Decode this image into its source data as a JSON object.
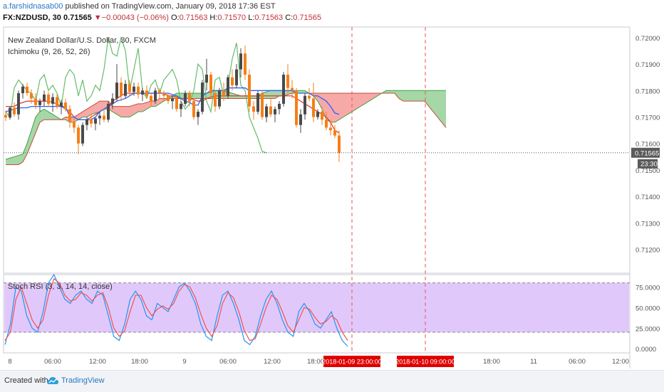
{
  "header": {
    "author": "a.farshidnasab00",
    "published_text": "published on TradingView.com, January 09, 2018 17:36 EST",
    "symbol": "FX:NZDUSD, 30",
    "last": "0.71565",
    "change": "▼−0.00043 (−0.06%)",
    "o_label": "O:",
    "o_val": "0.71563",
    "h_label": "H:",
    "h_val": "0.71570",
    "l_label": "L:",
    "l_val": "0.71563",
    "c_label": "C:",
    "c_val": "0.71565"
  },
  "footer": {
    "created_with": "Created with",
    "brand": "TradingView"
  },
  "colors": {
    "up": "#4a4a4a",
    "down": "#f57f17",
    "kumo_bull": "#4caf50",
    "kumo_bear": "#ef5350",
    "conversion": "#2962ff",
    "base": "#e53935",
    "lagging": "#66bb6a",
    "k": "#2196f3",
    "d": "#ef5350",
    "rsi_band": "#e1c8fb",
    "marker": "#ef5350",
    "label_bg": "#e00000"
  },
  "chart_data": [
    {
      "type": "line",
      "title": "New Zealand Dollar/U.S. Dollar, 30, FXCM",
      "indicator": "Ichimoku (9, 26, 52, 26)",
      "ylim": [
        0.7111,
        0.7204
      ],
      "y_ticks": [
        "0.72000",
        "0.71900",
        "0.71800",
        "0.71700",
        "0.71600",
        "0.71500",
        "0.71400",
        "0.71300",
        "0.71200"
      ],
      "y_tick_values": [
        0.72,
        0.719,
        0.718,
        0.717,
        0.716,
        0.715,
        0.714,
        0.713,
        0.712
      ],
      "last_price_label": "0.71565",
      "last_price": 0.71565,
      "countdown": "23:30",
      "x_ticks": [
        "8",
        "06:00",
        "12:00",
        "18:00",
        "9",
        "06:00",
        "12:00",
        "18:00",
        "",
        "",
        "18:00",
        "11",
        "06:00",
        "12:00"
      ],
      "time_markers": [
        "2018-01-09 23:00:00",
        "2018-01-10 09:00:00"
      ],
      "candles_ohlc": [
        [
          0.71708,
          0.71725,
          0.71685,
          0.71698
        ],
        [
          0.71698,
          0.7174,
          0.7169,
          0.71735
        ],
        [
          0.71735,
          0.71755,
          0.717,
          0.7171
        ],
        [
          0.7171,
          0.718,
          0.7169,
          0.7179
        ],
        [
          0.7179,
          0.71825,
          0.7177,
          0.71815
        ],
        [
          0.71815,
          0.7183,
          0.7178,
          0.7179
        ],
        [
          0.7179,
          0.71805,
          0.7175,
          0.7177
        ],
        [
          0.7177,
          0.7179,
          0.7173,
          0.71745
        ],
        [
          0.71745,
          0.7177,
          0.7172,
          0.7176
        ],
        [
          0.7176,
          0.718,
          0.7174,
          0.71785
        ],
        [
          0.71785,
          0.71795,
          0.7174,
          0.7175
        ],
        [
          0.7175,
          0.7179,
          0.7172,
          0.71775
        ],
        [
          0.71775,
          0.71785,
          0.7173,
          0.7174
        ],
        [
          0.7174,
          0.71765,
          0.7171,
          0.71755
        ],
        [
          0.71755,
          0.7177,
          0.7172,
          0.7173
        ],
        [
          0.7173,
          0.71745,
          0.7166,
          0.7168
        ],
        [
          0.7168,
          0.717,
          0.7164,
          0.7166
        ],
        [
          0.7166,
          0.7167,
          0.7156,
          0.716
        ],
        [
          0.716,
          0.7168,
          0.7159,
          0.7167
        ],
        [
          0.7167,
          0.717,
          0.7165,
          0.7169
        ],
        [
          0.7169,
          0.7171,
          0.7166,
          0.71675
        ],
        [
          0.71675,
          0.717,
          0.7165,
          0.71695
        ],
        [
          0.71695,
          0.7172,
          0.7167,
          0.71705
        ],
        [
          0.71705,
          0.7173,
          0.7168,
          0.7169
        ],
        [
          0.7169,
          0.7176,
          0.7168,
          0.7175
        ],
        [
          0.7175,
          0.7179,
          0.7173,
          0.7177
        ],
        [
          0.7177,
          0.719,
          0.7176,
          0.7183
        ],
        [
          0.7183,
          0.7185,
          0.7176,
          0.7178
        ],
        [
          0.7178,
          0.7184,
          0.7177,
          0.71825
        ],
        [
          0.71825,
          0.7184,
          0.7178,
          0.71795
        ],
        [
          0.71795,
          0.7183,
          0.7178,
          0.71815
        ],
        [
          0.71815,
          0.7183,
          0.7177,
          0.71785
        ],
        [
          0.71785,
          0.7181,
          0.7176,
          0.718
        ],
        [
          0.718,
          0.7182,
          0.7177,
          0.7178
        ],
        [
          0.7178,
          0.7179,
          0.7174,
          0.7176
        ],
        [
          0.7176,
          0.7181,
          0.7175,
          0.718
        ],
        [
          0.718,
          0.7181,
          0.7177,
          0.7179
        ],
        [
          0.7179,
          0.718,
          0.7176,
          0.7178
        ],
        [
          0.7178,
          0.7179,
          0.7175,
          0.7176
        ],
        [
          0.7176,
          0.7178,
          0.7173,
          0.7177
        ],
        [
          0.7177,
          0.7178,
          0.7172,
          0.7173
        ],
        [
          0.7173,
          0.7176,
          0.717,
          0.7175
        ],
        [
          0.7175,
          0.718,
          0.7174,
          0.7179
        ],
        [
          0.7179,
          0.718,
          0.7174,
          0.7176
        ],
        [
          0.7176,
          0.7177,
          0.7169,
          0.717
        ],
        [
          0.717,
          0.7173,
          0.7167,
          0.7172
        ],
        [
          0.7172,
          0.7184,
          0.7171,
          0.7183
        ],
        [
          0.7183,
          0.7192,
          0.718,
          0.7186
        ],
        [
          0.7186,
          0.7187,
          0.7177,
          0.7179
        ],
        [
          0.7179,
          0.718,
          0.7172,
          0.7174
        ],
        [
          0.7174,
          0.7181,
          0.7173,
          0.718
        ],
        [
          0.718,
          0.7183,
          0.7176,
          0.7178
        ],
        [
          0.7178,
          0.7186,
          0.7177,
          0.7185
        ],
        [
          0.7185,
          0.7188,
          0.718,
          0.7182
        ],
        [
          0.7182,
          0.719,
          0.7181,
          0.7188
        ],
        [
          0.7188,
          0.7196,
          0.7185,
          0.7194
        ],
        [
          0.7194,
          0.7197,
          0.7184,
          0.7186
        ],
        [
          0.7186,
          0.7188,
          0.7172,
          0.7174
        ],
        [
          0.7174,
          0.7176,
          0.7169,
          0.7172
        ],
        [
          0.7172,
          0.718,
          0.7171,
          0.7179
        ],
        [
          0.7179,
          0.718,
          0.7169,
          0.717
        ],
        [
          0.717,
          0.7175,
          0.7168,
          0.7174
        ],
        [
          0.7174,
          0.7177,
          0.717,
          0.7171
        ],
        [
          0.7171,
          0.7174,
          0.7168,
          0.7173
        ],
        [
          0.7173,
          0.7176,
          0.7171,
          0.7175
        ],
        [
          0.7175,
          0.7187,
          0.7174,
          0.7186
        ],
        [
          0.7186,
          0.719,
          0.7179,
          0.7181
        ],
        [
          0.7181,
          0.7184,
          0.7177,
          0.718
        ],
        [
          0.718,
          0.7181,
          0.7166,
          0.7167
        ],
        [
          0.7167,
          0.7173,
          0.7164,
          0.7171
        ],
        [
          0.7171,
          0.7179,
          0.7169,
          0.7178
        ],
        [
          0.7178,
          0.7181,
          0.7176,
          0.7177
        ],
        [
          0.7177,
          0.7183,
          0.7168,
          0.717
        ],
        [
          0.717,
          0.7173,
          0.7169,
          0.7172
        ],
        [
          0.7172,
          0.7174,
          0.7167,
          0.7169
        ],
        [
          0.7169,
          0.7172,
          0.7165,
          0.7166
        ],
        [
          0.7166,
          0.7169,
          0.7163,
          0.7165
        ],
        [
          0.7165,
          0.7167,
          0.7162,
          0.7163
        ],
        [
          0.7163,
          0.7165,
          0.7153,
          0.71565
        ]
      ],
      "conversion_line": [
        0.7172,
        0.71725,
        0.7173,
        0.71735,
        0.71735,
        0.71735,
        0.7174,
        0.7174,
        0.7174,
        0.7174,
        0.7174,
        0.7174,
        0.7174,
        0.7174,
        0.7174,
        0.717,
        0.717,
        0.7169,
        0.7169,
        0.7169,
        0.7169,
        0.717,
        0.7172,
        0.7173,
        0.7174,
        0.7175,
        0.7176,
        0.71765,
        0.7177,
        0.7178,
        0.7179,
        0.7179,
        0.7179,
        0.7179,
        0.7179,
        0.7179,
        0.7179,
        0.7179,
        0.7179,
        0.71785,
        0.7178,
        0.7177,
        0.7176,
        0.71755,
        0.71745,
        0.71745,
        0.7178,
        0.7179,
        0.718,
        0.718,
        0.718,
        0.718,
        0.7181,
        0.7181,
        0.7181,
        0.7181,
        0.7181,
        0.718,
        0.718,
        0.718,
        0.718,
        0.718,
        0.718,
        0.718,
        0.718,
        0.718,
        0.718,
        0.718,
        0.7179,
        0.7179,
        0.7179,
        0.7179,
        0.7178,
        0.7178,
        0.7177,
        0.7176,
        0.7174,
        0.71715,
        0.7171
      ],
      "base_line": [
        0.7174,
        0.7174,
        0.7174,
        0.7175,
        0.71755,
        0.7176,
        0.7176,
        0.7176,
        0.7176,
        0.7176,
        0.7176,
        0.71755,
        0.7175,
        0.7174,
        0.7173,
        0.7172,
        0.717,
        0.7169,
        0.7169,
        0.7169,
        0.717,
        0.7171,
        0.7172,
        0.7173,
        0.7174,
        0.7176,
        0.7177,
        0.7178,
        0.7179,
        0.7179,
        0.7179,
        0.7179,
        0.7179,
        0.7179,
        0.7179,
        0.7179,
        0.7179,
        0.7179,
        0.7178,
        0.7178,
        0.71775,
        0.7177,
        0.7177,
        0.7177,
        0.71765,
        0.7176,
        0.7176,
        0.7177,
        0.71775,
        0.7178,
        0.7178,
        0.7178,
        0.7178,
        0.7178,
        0.7178,
        0.7178,
        0.7178,
        0.7178,
        0.7178,
        0.7178,
        0.7178,
        0.7178,
        0.7178,
        0.7178,
        0.7178,
        0.7178,
        0.7178,
        0.7178,
        0.7177,
        0.7176,
        0.7175,
        0.7174,
        0.7173,
        0.7172,
        0.7171,
        0.717,
        0.7168,
        0.7165,
        0.7164
      ],
      "lagging_span": [
        0.7172,
        0.717,
        0.7181,
        0.7184,
        0.7182,
        0.718,
        0.7179,
        0.7176,
        0.7184,
        0.7186,
        0.718,
        0.7182,
        0.7179,
        0.7174,
        0.7185,
        0.7188,
        0.7186,
        0.7178,
        0.7184,
        0.7176,
        0.7178,
        0.7182,
        0.718,
        0.7188,
        0.72,
        0.7194,
        0.7193,
        0.72,
        0.7195,
        0.718,
        0.7188,
        0.7196,
        0.718,
        0.7177,
        0.7182,
        0.7184,
        0.7179,
        0.7184,
        0.7186,
        0.7188,
        0.7184,
        0.7176,
        0.7173,
        0.7175,
        0.718,
        0.719,
        0.7188,
        0.7176,
        0.7172,
        0.7184,
        0.7185,
        0.7178,
        0.7182,
        0.7192,
        0.7198,
        0.7182,
        0.718,
        0.717,
        0.7166,
        0.7162,
        0.7157,
        0.71565
      ],
      "span_a": [
        0.7154,
        0.71545,
        0.7155,
        0.71555,
        0.7156,
        0.716,
        0.7165,
        0.717,
        0.7172,
        0.7173,
        0.7172,
        0.7171,
        0.717,
        0.7169,
        0.7169,
        0.7168,
        0.7168,
        0.7169,
        0.717,
        0.717,
        0.7171,
        0.71715,
        0.7172,
        0.7173,
        0.7173,
        0.7172,
        0.7171,
        0.717,
        0.717,
        0.717,
        0.7171,
        0.7172,
        0.7172,
        0.7173,
        0.7174,
        0.7174,
        0.7175,
        0.7176,
        0.7177,
        0.7178,
        0.7179,
        0.7179,
        0.7179,
        0.7179,
        0.7179,
        0.7179,
        0.7179,
        0.7179,
        0.71795,
        0.718,
        0.718,
        0.718,
        0.71795,
        0.7179,
        0.71785,
        0.7178,
        0.7178,
        0.7178,
        0.7178,
        0.7178,
        0.7179,
        0.71795,
        0.718,
        0.718,
        0.718,
        0.718,
        0.718,
        0.718,
        0.718,
        0.718,
        0.718,
        0.7179,
        0.7178,
        0.7176,
        0.7173,
        0.7169,
        0.7168,
        0.7168,
        0.7169,
        0.717,
        0.7171,
        0.7172,
        0.7173,
        0.7174,
        0.7175,
        0.7176,
        0.7177,
        0.7178,
        0.7179,
        0.718,
        0.718,
        0.718,
        0.718,
        0.718,
        0.718,
        0.718,
        0.718,
        0.718,
        0.718,
        0.718,
        0.718,
        0.718,
        0.718,
        0.718
      ],
      "span_b": [
        0.7152,
        0.7152,
        0.7152,
        0.7152,
        0.7153,
        0.7156,
        0.716,
        0.7164,
        0.7168,
        0.7169,
        0.7169,
        0.7169,
        0.7169,
        0.7169,
        0.717,
        0.717,
        0.717,
        0.7171,
        0.7172,
        0.7173,
        0.7174,
        0.7175,
        0.7176,
        0.7176,
        0.7176,
        0.7174,
        0.7174,
        0.7174,
        0.7174,
        0.7174,
        0.71745,
        0.7175,
        0.7175,
        0.71755,
        0.7176,
        0.7176,
        0.7177,
        0.7177,
        0.7177,
        0.7177,
        0.7177,
        0.7177,
        0.7177,
        0.7177,
        0.7177,
        0.7177,
        0.7177,
        0.7177,
        0.7177,
        0.7177,
        0.7177,
        0.7177,
        0.7177,
        0.7177,
        0.7177,
        0.7177,
        0.7177,
        0.7177,
        0.7177,
        0.7177,
        0.7177,
        0.7177,
        0.7177,
        0.7177,
        0.7178,
        0.7178,
        0.71785,
        0.7179,
        0.7179,
        0.7179,
        0.7179,
        0.7179,
        0.7179,
        0.7179,
        0.7179,
        0.7179,
        0.7179,
        0.7179,
        0.7179,
        0.7179,
        0.7179,
        0.7179,
        0.7179,
        0.7179,
        0.7179,
        0.7179,
        0.7179,
        0.7179,
        0.7179,
        0.7179,
        0.7179,
        0.7179,
        0.7177,
        0.7176,
        0.7176,
        0.7176,
        0.7176,
        0.7176,
        0.7176,
        0.7174,
        0.7172,
        0.717,
        0.7168,
        0.7166
      ]
    },
    {
      "type": "line",
      "title": "Stoch RSI (3, 3, 14, 14, close)",
      "ylim": [
        -5,
        90
      ],
      "y_ticks": [
        "75.0000",
        "50.0000",
        "25.0000",
        "0.0000"
      ],
      "y_tick_values": [
        75,
        50,
        25,
        0
      ],
      "band": [
        20,
        80
      ],
      "series": [
        {
          "name": "K",
          "values": [
            5,
            30,
            75,
            70,
            40,
            25,
            20,
            45,
            80,
            90,
            75,
            60,
            55,
            65,
            70,
            60,
            55,
            70,
            65,
            40,
            15,
            10,
            30,
            60,
            70,
            60,
            40,
            35,
            55,
            50,
            45,
            60,
            75,
            80,
            70,
            55,
            30,
            15,
            10,
            40,
            65,
            70,
            55,
            35,
            10,
            5,
            15,
            40,
            60,
            70,
            55,
            35,
            20,
            15,
            45,
            55,
            45,
            30,
            25,
            35,
            45,
            25,
            10,
            3
          ]
        },
        {
          "name": "D",
          "values": [
            10,
            20,
            60,
            75,
            55,
            35,
            25,
            35,
            65,
            85,
            80,
            65,
            58,
            60,
            68,
            65,
            58,
            65,
            68,
            50,
            25,
            15,
            22,
            45,
            65,
            65,
            50,
            40,
            48,
            52,
            48,
            55,
            70,
            78,
            75,
            62,
            42,
            25,
            15,
            28,
            55,
            68,
            62,
            45,
            22,
            10,
            12,
            30,
            50,
            65,
            60,
            45,
            28,
            20,
            35,
            50,
            48,
            38,
            30,
            33,
            40,
            35,
            20,
            10
          ]
        }
      ]
    }
  ]
}
